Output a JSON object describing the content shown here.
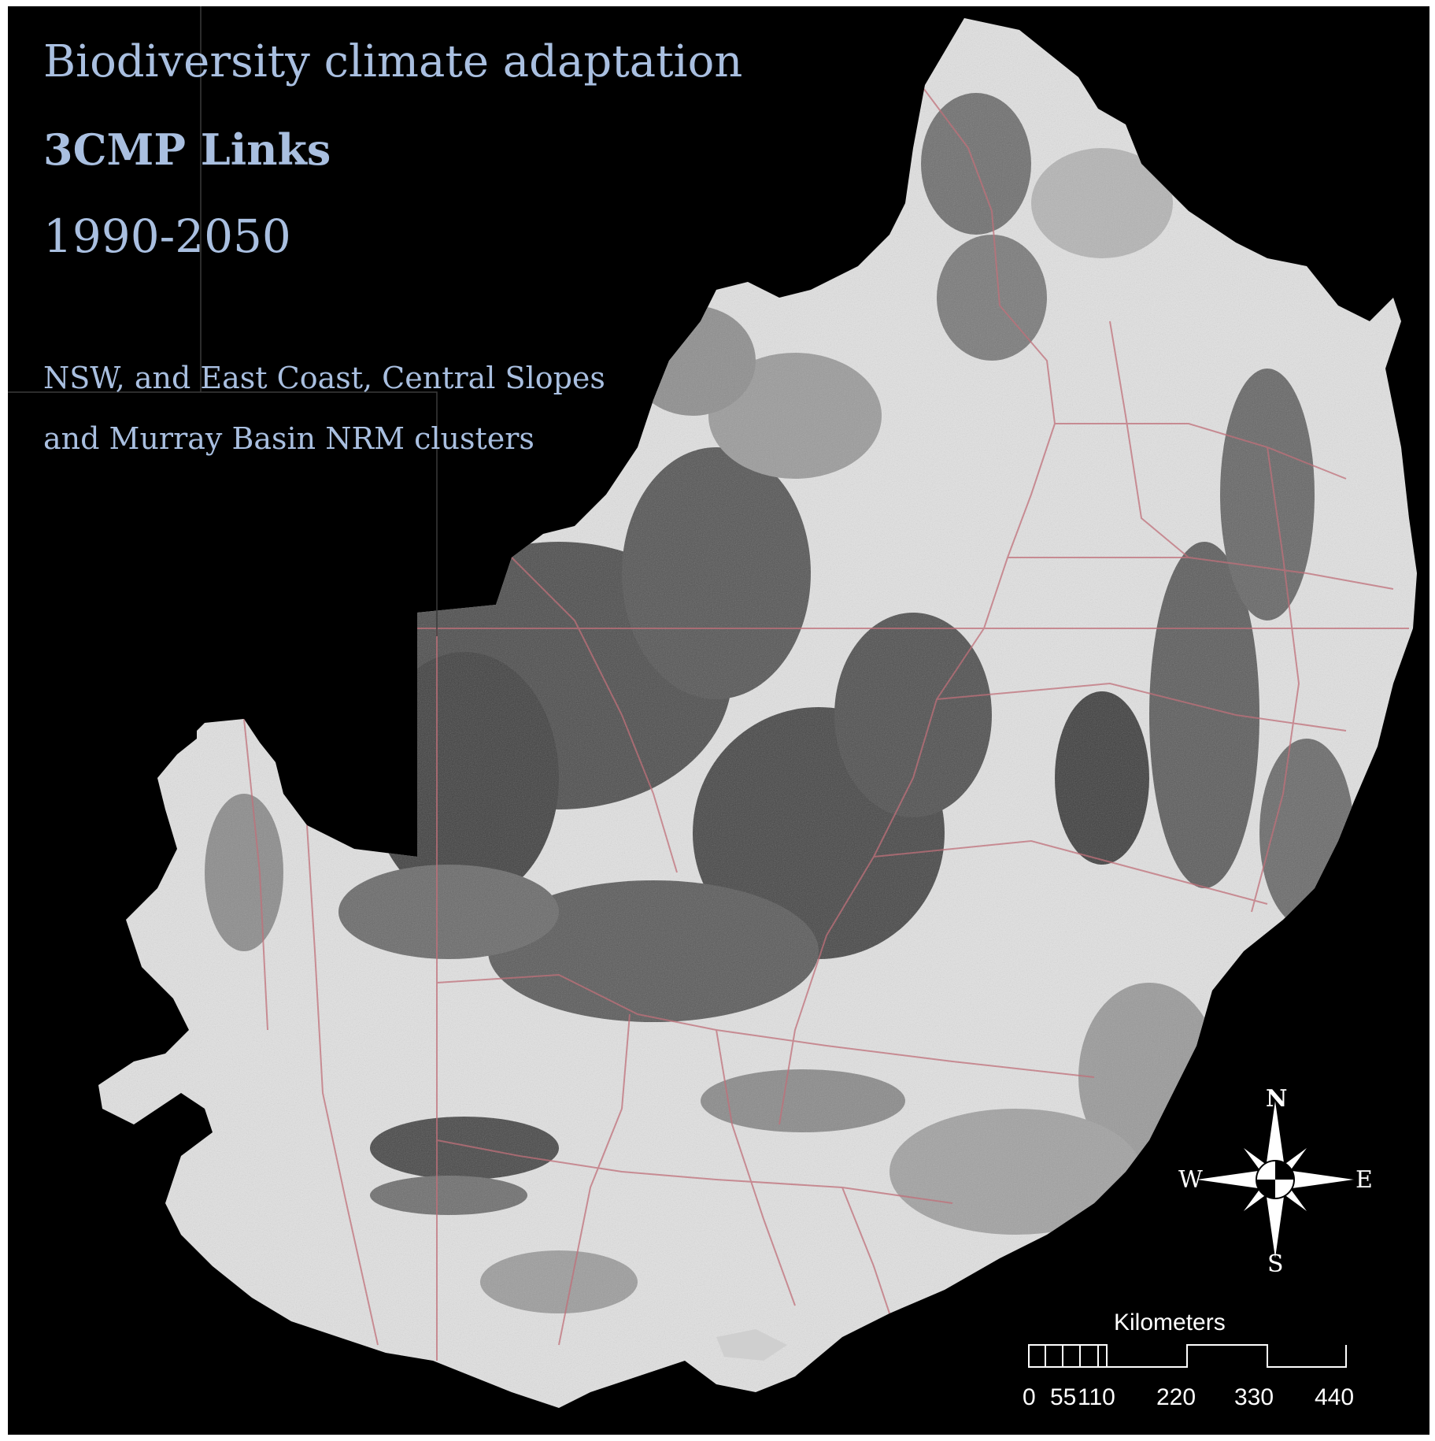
{
  "title": {
    "line1": "Biodiversity climate adaptation",
    "line2": "3CMP Links",
    "line3": "1990-2050",
    "line4": "NSW, and East Coast, Central Slopes",
    "line5": "and Murray Basin NRM clusters"
  },
  "compass": {
    "north": "N",
    "south": "S",
    "east": "E",
    "west": "W"
  },
  "scale_bar": {
    "unit": "Kilometers",
    "ticks": [
      "0",
      "55",
      "110",
      "220",
      "330",
      "440"
    ]
  },
  "colors": {
    "background": "#000000",
    "title_text": "#a9bfe0",
    "boundary_lines": "#c0707a",
    "land_light": "#e4e4e4",
    "land_dark": "#4a4a4a"
  }
}
